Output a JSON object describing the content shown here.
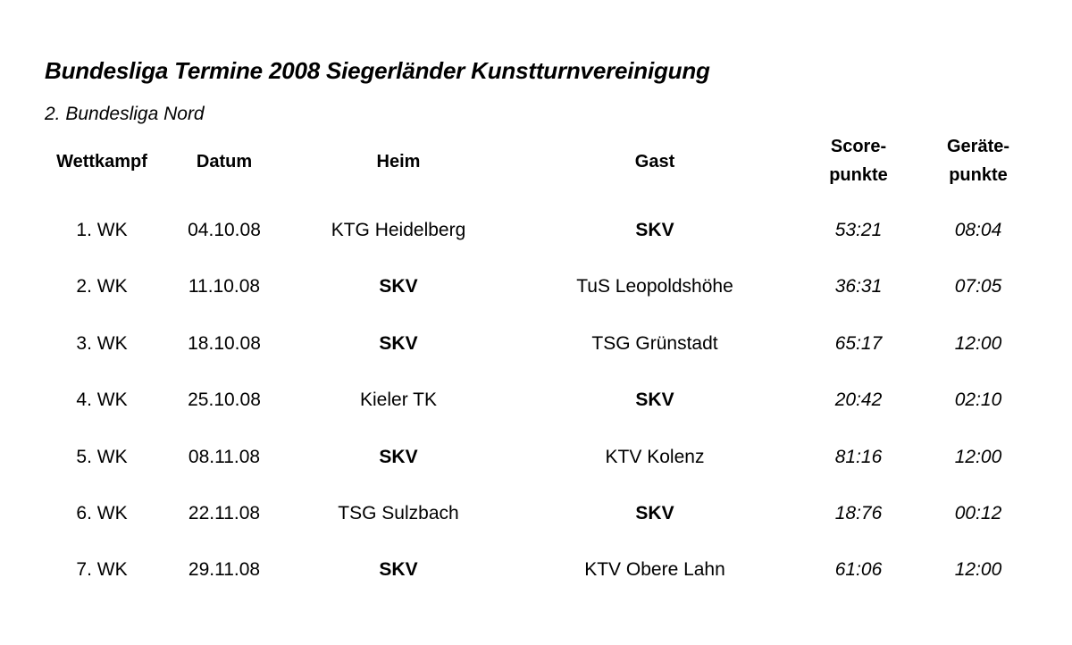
{
  "title": "Bundesliga Termine 2008 Siegerländer Kunstturnvereinigung",
  "subtitle": "2. Bundesliga Nord",
  "headers": {
    "wettkampf": "Wettkampf",
    "datum": "Datum",
    "heim": "Heim",
    "gast": "Gast",
    "score_line1": "Score-",
    "score_line2": "punkte",
    "geraete_line1": "Geräte-",
    "geraete_line2": "punkte"
  },
  "rows": [
    {
      "wk": "1. WK",
      "datum": "04.10.08",
      "heim": "KTG Heidelberg",
      "gast": "SKV",
      "score": "53:21",
      "geraete": "08:04",
      "heim_bold": false,
      "gast_bold": true
    },
    {
      "wk": "2. WK",
      "datum": "11.10.08",
      "heim": "SKV",
      "gast": "TuS Leopoldshöhe",
      "score": "36:31",
      "geraete": "07:05",
      "heim_bold": true,
      "gast_bold": false
    },
    {
      "wk": "3. WK",
      "datum": "18.10.08",
      "heim": "SKV",
      "gast": "TSG Grünstadt",
      "score": "65:17",
      "geraete": "12:00",
      "heim_bold": true,
      "gast_bold": false
    },
    {
      "wk": "4. WK",
      "datum": "25.10.08",
      "heim": "Kieler TK",
      "gast": "SKV",
      "score": "20:42",
      "geraete": "02:10",
      "heim_bold": false,
      "gast_bold": true
    },
    {
      "wk": "5. WK",
      "datum": "08.11.08",
      "heim": "SKV",
      "gast": "KTV Kolenz",
      "score": "81:16",
      "geraete": "12:00",
      "heim_bold": true,
      "gast_bold": false
    },
    {
      "wk": "6. WK",
      "datum": "22.11.08",
      "heim": "TSG Sulzbach",
      "gast": "SKV",
      "score": "18:76",
      "geraete": "00:12",
      "heim_bold": false,
      "gast_bold": true
    },
    {
      "wk": "7. WK",
      "datum": "29.11.08",
      "heim": "SKV",
      "gast": "KTV Obere Lahn",
      "score": "61:06",
      "geraete": "12:00",
      "heim_bold": true,
      "gast_bold": false
    }
  ]
}
